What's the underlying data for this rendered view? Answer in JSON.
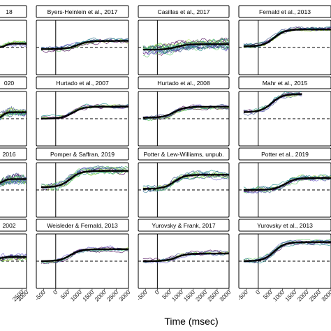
{
  "figure": {
    "xlabel": "Time (msec)"
  },
  "chart_data": {
    "type": "line",
    "xlabel": "Time (msec)",
    "x_ticks": [
      "-500",
      "0",
      "500",
      "1000",
      "1500",
      "2000",
      "2500",
      "3000"
    ],
    "first_column_x_ticks": [
      "2500",
      "3000"
    ],
    "xlim": [
      -800,
      3000
    ],
    "ylim": [
      0,
      1
    ],
    "onset_line_x": 0,
    "reference_line": "dashed",
    "grid": false,
    "series_colors": [
      "#440154",
      "#3b528b",
      "#21908d",
      "#5dc863",
      "#a0da39",
      "#6a5acd",
      "#2c728e"
    ],
    "mean_color": "#000000",
    "panels": [
      {
        "title": "18",
        "partial": true,
        "row": 0,
        "col": 0,
        "base": 0.5,
        "peak": 0.57,
        "mid": 700,
        "n": 6,
        "noise": 0.04,
        "start": -800,
        "end": 3000
      },
      {
        "title": "Byers-Heinlein et al., 2017",
        "row": 0,
        "col": 1,
        "base": 0.47,
        "peak": 0.62,
        "mid": 900,
        "n": 8,
        "noise": 0.05,
        "start": -600,
        "end": 3000
      },
      {
        "title": "Casillas et al., 2017",
        "row": 0,
        "col": 2,
        "base": 0.46,
        "peak": 0.56,
        "mid": 800,
        "n": 18,
        "noise": 0.09,
        "start": -600,
        "end": 3000
      },
      {
        "title": "Fernald et al., 2013",
        "row": 0,
        "col": 3,
        "base": 0.52,
        "peak": 0.83,
        "mid": 650,
        "n": 10,
        "noise": 0.04,
        "start": -600,
        "end": 3000
      },
      {
        "title": "020",
        "partial": true,
        "row": 1,
        "col": 0,
        "base": 0.5,
        "peak": 0.62,
        "mid": 400,
        "n": 12,
        "noise": 0.07,
        "start": -800,
        "end": 3000
      },
      {
        "title": "Hurtado et al., 2007",
        "row": 1,
        "col": 1,
        "base": 0.5,
        "peak": 0.72,
        "mid": 700,
        "n": 8,
        "noise": 0.04,
        "start": -600,
        "end": 3000
      },
      {
        "title": "Hurtado et al., 2008",
        "row": 1,
        "col": 2,
        "base": 0.52,
        "peak": 0.72,
        "mid": 700,
        "n": 8,
        "noise": 0.04,
        "start": -600,
        "end": 3000
      },
      {
        "title": "Mahr et al., 2015",
        "row": 1,
        "col": 3,
        "base": 0.62,
        "peak": 0.95,
        "mid": 550,
        "n": 8,
        "noise": 0.05,
        "start": -600,
        "end": 1800
      },
      {
        "title": "2016",
        "partial": true,
        "row": 2,
        "col": 0,
        "base": 0.62,
        "peak": 0.7,
        "mid": 500,
        "n": 14,
        "noise": 0.07,
        "start": -800,
        "end": 3000
      },
      {
        "title": "Pomper & Saffran, 2019",
        "row": 2,
        "col": 1,
        "base": 0.55,
        "peak": 0.85,
        "mid": 600,
        "n": 12,
        "noise": 0.06,
        "start": -600,
        "end": 3000
      },
      {
        "title": "Potter & Lew-Williams, unpub.",
        "row": 2,
        "col": 2,
        "base": 0.52,
        "peak": 0.78,
        "mid": 700,
        "n": 12,
        "noise": 0.06,
        "start": -600,
        "end": 3000
      },
      {
        "title": "Potter et al., 2019",
        "row": 2,
        "col": 3,
        "base": 0.5,
        "peak": 0.72,
        "mid": 1100,
        "n": 10,
        "noise": 0.06,
        "start": -600,
        "end": 3000
      },
      {
        "title": "2002",
        "partial": true,
        "row": 3,
        "col": 0,
        "base": 0.55,
        "peak": 0.58,
        "mid": 500,
        "n": 8,
        "noise": 0.05,
        "start": -800,
        "end": 3000
      },
      {
        "title": "Weisleder & Fernald, 2013",
        "row": 3,
        "col": 1,
        "base": 0.5,
        "peak": 0.72,
        "mid": 600,
        "n": 8,
        "noise": 0.04,
        "start": -600,
        "end": 3000
      },
      {
        "title": "Yurovsky & Frank, 2017",
        "row": 3,
        "col": 2,
        "base": 0.5,
        "peak": 0.64,
        "mid": 800,
        "n": 8,
        "noise": 0.04,
        "start": -600,
        "end": 3000
      },
      {
        "title": "Yurovsky et al., 2013",
        "row": 3,
        "col": 3,
        "base": 0.5,
        "peak": 0.85,
        "mid": 650,
        "n": 10,
        "noise": 0.04,
        "start": -600,
        "end": 3000
      }
    ]
  }
}
